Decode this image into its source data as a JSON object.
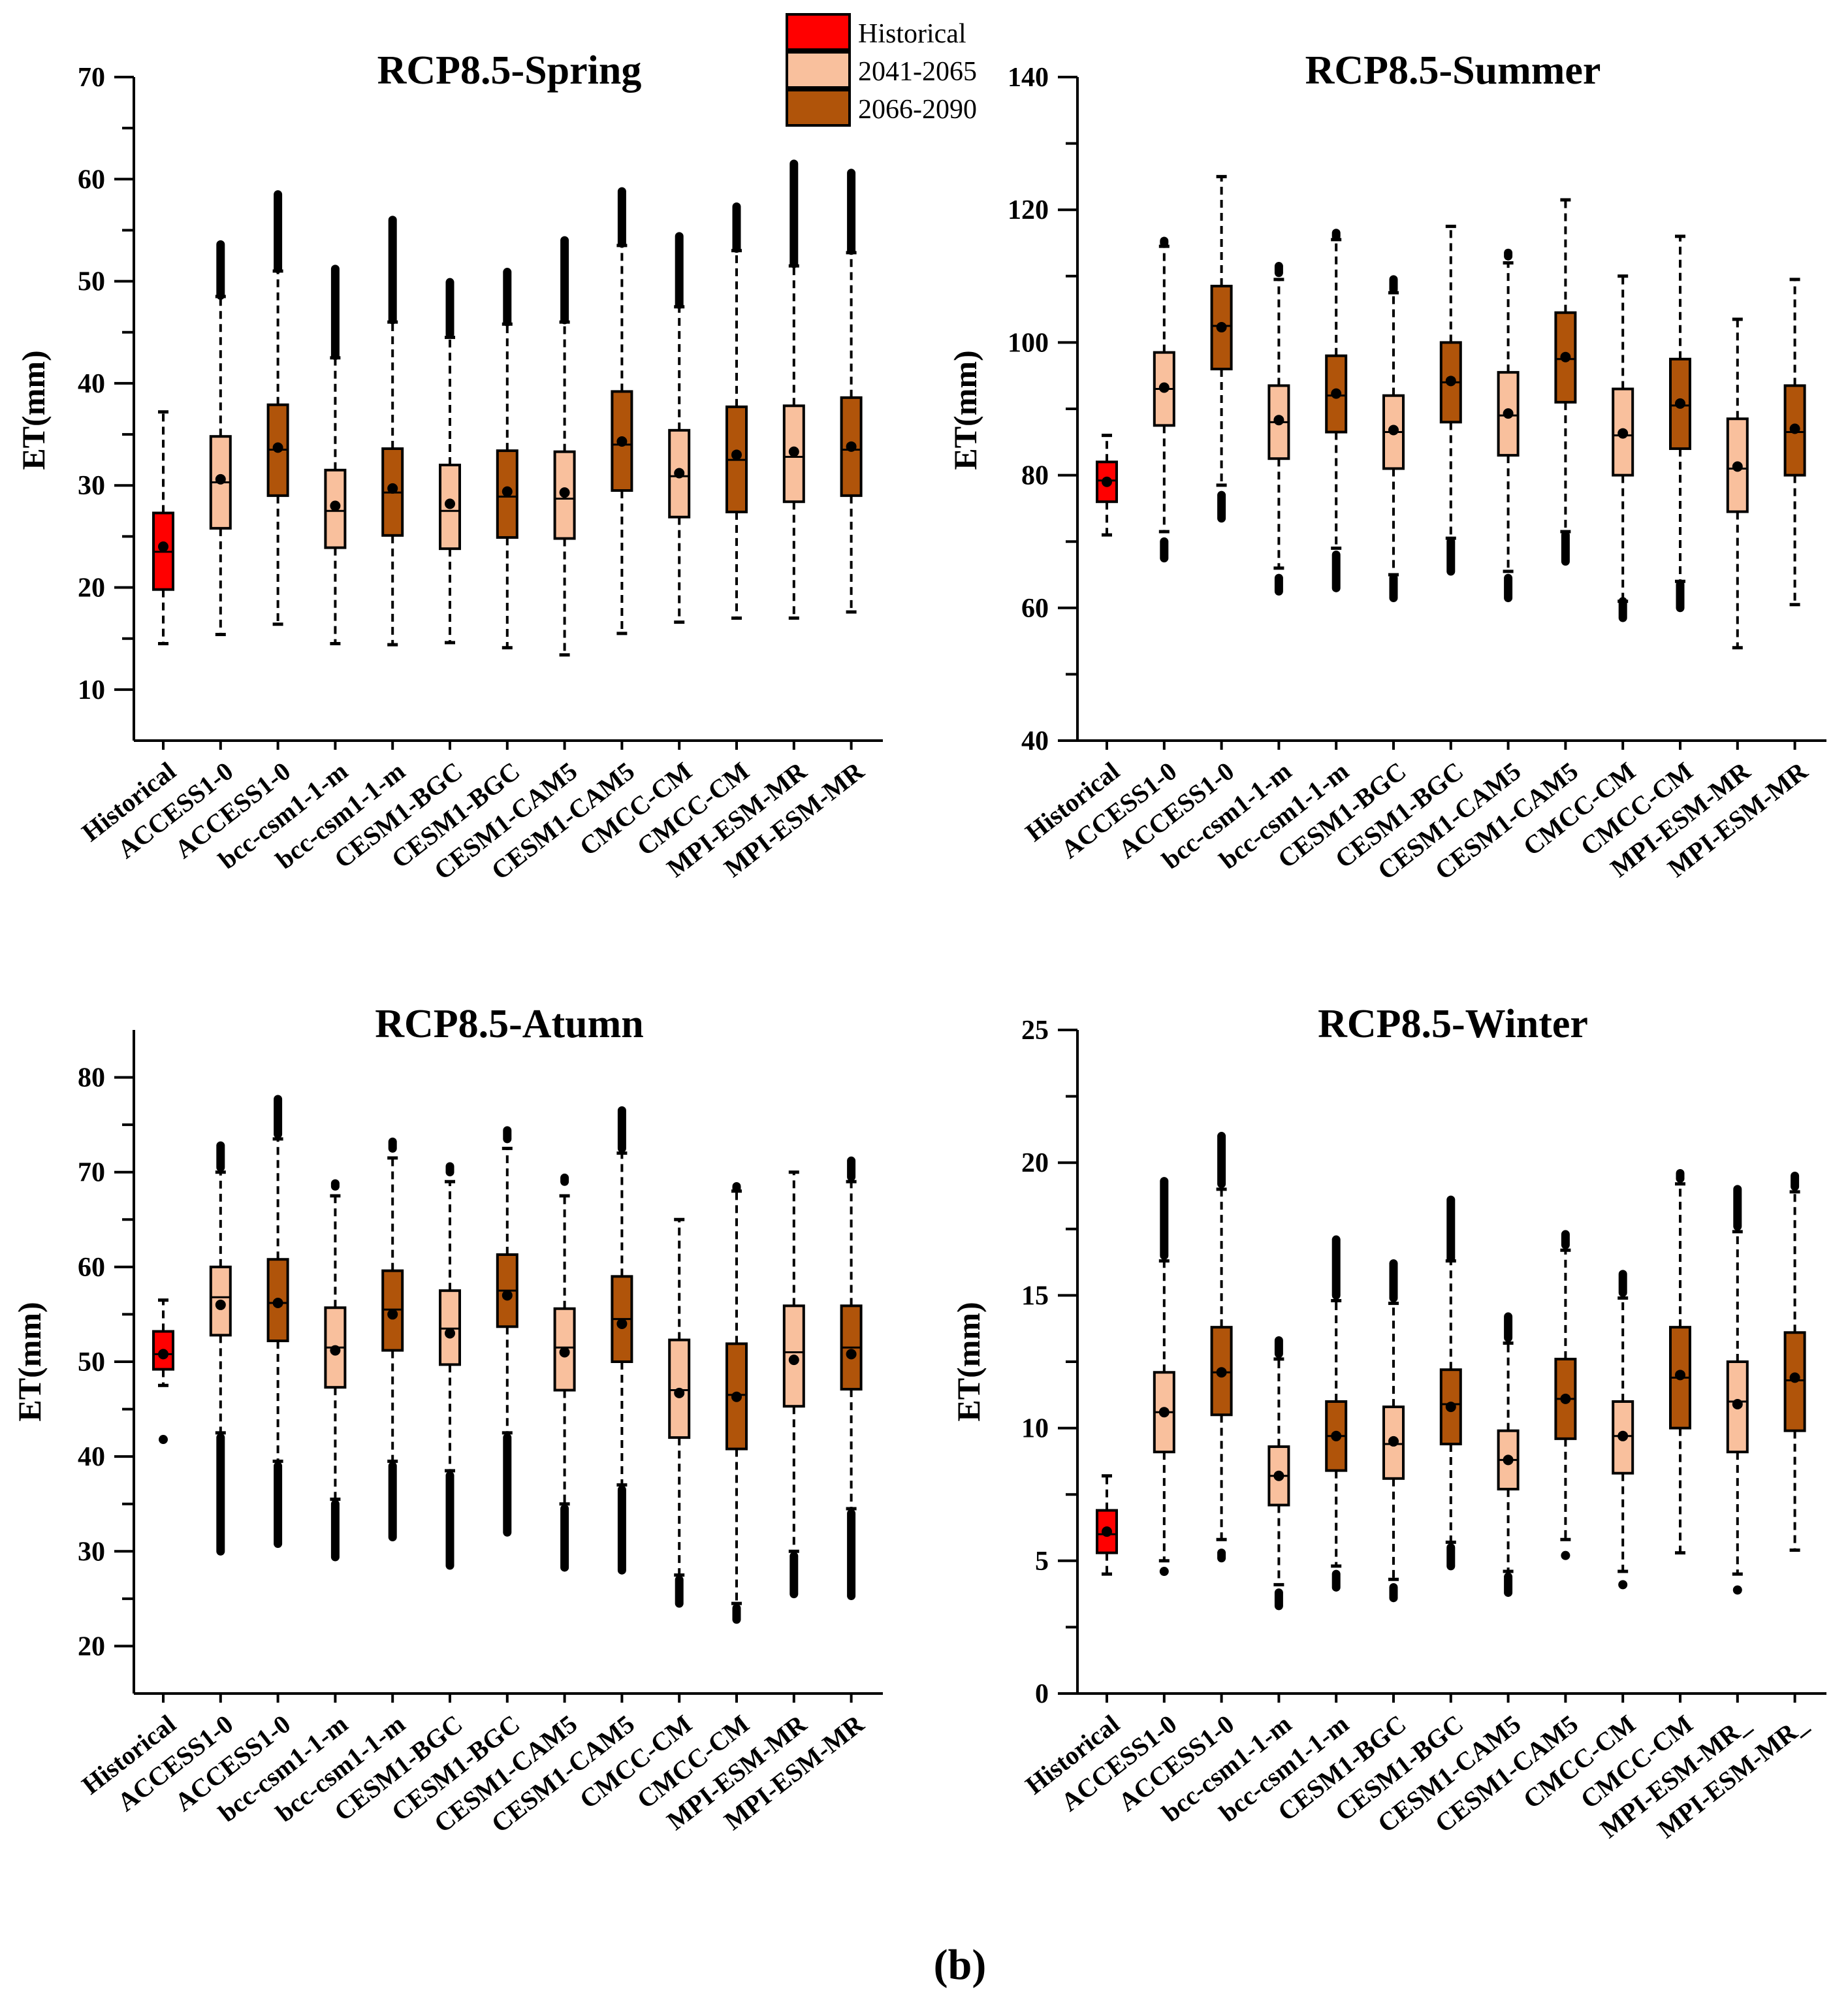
{
  "legend": {
    "items": [
      {
        "label": "Historical",
        "color": "#ff0000"
      },
      {
        "label": "2041-2065",
        "color": "#f9c09d"
      },
      {
        "label": "2066-2090",
        "color": "#b0540a"
      }
    ]
  },
  "caption": "(b)",
  "chart_data": [
    {
      "type": "boxplot",
      "title": "RCP8.5-Spring",
      "ylabel": "ET(mm)",
      "ylim": [
        5,
        70
      ],
      "yticks": [
        10,
        20,
        30,
        40,
        50,
        60,
        70
      ],
      "categories": [
        "Historical",
        "ACCESS1-0",
        "ACCESS1-0",
        "bcc-csm1-1-m",
        "bcc-csm1-1-m",
        "CESM1-BGC",
        "CESM1-BGC",
        "CESM1-CAM5",
        "CESM1-CAM5",
        "CMCC-CM",
        "CMCC-CM",
        "MPI-ESM-MR",
        "MPI-ESM-MR"
      ],
      "groups": [
        "Historical",
        "2041-2065",
        "2066-2090",
        "2041-2065",
        "2066-2090",
        "2041-2065",
        "2066-2090",
        "2041-2065",
        "2066-2090",
        "2041-2065",
        "2066-2090",
        "2041-2065",
        "2066-2090"
      ],
      "boxes": [
        {
          "min": 14.5,
          "q1": 19.8,
          "median": 23.5,
          "q3": 27.3,
          "max": 37.2,
          "mean": 24.0,
          "outliers": []
        },
        {
          "min": 15.4,
          "q1": 25.8,
          "median": 30.3,
          "q3": 34.8,
          "max": 48.5,
          "mean": 30.6,
          "outliers": [
            {
              "from": 48.6,
              "to": 53.6
            }
          ]
        },
        {
          "min": 16.4,
          "q1": 29.0,
          "median": 33.5,
          "q3": 37.9,
          "max": 51.0,
          "mean": 33.7,
          "outliers": [
            {
              "from": 51.2,
              "to": 58.5
            }
          ]
        },
        {
          "min": 14.5,
          "q1": 23.9,
          "median": 27.5,
          "q3": 31.5,
          "max": 42.5,
          "mean": 28.0,
          "outliers": [
            {
              "from": 42.7,
              "to": 51.2
            }
          ]
        },
        {
          "min": 14.4,
          "q1": 25.1,
          "median": 29.3,
          "q3": 33.6,
          "max": 46.0,
          "mean": 29.7,
          "outliers": [
            {
              "from": 46.2,
              "to": 56.0
            }
          ]
        },
        {
          "min": 14.6,
          "q1": 23.8,
          "median": 27.5,
          "q3": 32.0,
          "max": 44.5,
          "mean": 28.2,
          "outliers": [
            {
              "from": 44.8,
              "to": 49.9
            }
          ]
        },
        {
          "min": 14.1,
          "q1": 24.9,
          "median": 28.9,
          "q3": 33.4,
          "max": 45.8,
          "mean": 29.4,
          "outliers": [
            {
              "from": 46.0,
              "to": 50.9
            }
          ]
        },
        {
          "min": 13.4,
          "q1": 24.8,
          "median": 28.7,
          "q3": 33.3,
          "max": 46.0,
          "mean": 29.3,
          "outliers": [
            {
              "from": 46.2,
              "to": 54.0
            }
          ]
        },
        {
          "min": 15.5,
          "q1": 29.5,
          "median": 34.0,
          "q3": 39.2,
          "max": 53.5,
          "mean": 34.3,
          "outliers": [
            {
              "from": 53.7,
              "to": 58.8
            }
          ]
        },
        {
          "min": 16.6,
          "q1": 26.9,
          "median": 30.9,
          "q3": 35.4,
          "max": 47.5,
          "mean": 31.2,
          "outliers": [
            {
              "from": 47.7,
              "to": 54.4
            }
          ]
        },
        {
          "min": 17.0,
          "q1": 27.4,
          "median": 32.5,
          "q3": 37.7,
          "max": 53.0,
          "mean": 33.0,
          "outliers": [
            {
              "from": 53.2,
              "to": 57.3
            }
          ]
        },
        {
          "min": 17.0,
          "q1": 28.4,
          "median": 32.8,
          "q3": 37.8,
          "max": 51.5,
          "mean": 33.3,
          "outliers": [
            {
              "from": 51.7,
              "to": 61.5
            }
          ]
        },
        {
          "min": 17.6,
          "q1": 29.0,
          "median": 33.5,
          "q3": 38.6,
          "max": 52.8,
          "mean": 33.8,
          "outliers": [
            {
              "from": 53.0,
              "to": 60.6
            }
          ]
        }
      ]
    },
    {
      "type": "boxplot",
      "title": "RCP8.5-Summer",
      "ylabel": "ET(mm)",
      "ylim": [
        40,
        140
      ],
      "yticks": [
        40,
        60,
        80,
        100,
        120,
        140
      ],
      "categories": [
        "Historical",
        "ACCESS1-0",
        "ACCESS1-0",
        "bcc-csm1-1-m",
        "bcc-csm1-1-m",
        "CESM1-BGC",
        "CESM1-BGC",
        "CESM1-CAM5",
        "CESM1-CAM5",
        "CMCC-CM",
        "CMCC-CM",
        "MPI-ESM-MR",
        "MPI-ESM-MR"
      ],
      "groups": [
        "Historical",
        "2041-2065",
        "2066-2090",
        "2041-2065",
        "2066-2090",
        "2041-2065",
        "2066-2090",
        "2041-2065",
        "2066-2090",
        "2041-2065",
        "2066-2090",
        "2041-2065",
        "2066-2090"
      ],
      "boxes": [
        {
          "min": 71.0,
          "q1": 76.0,
          "median": 79.2,
          "q3": 82.0,
          "max": 86.0,
          "mean": 79.0,
          "outliers": []
        },
        {
          "min": 71.5,
          "q1": 87.5,
          "median": 93.0,
          "q3": 98.5,
          "max": 114.5,
          "mean": 93.2,
          "outliers": [
            {
              "from": 67.5,
              "to": 70.0
            },
            {
              "from": 115.0,
              "to": 115.3
            }
          ]
        },
        {
          "min": 78.5,
          "q1": 96.0,
          "median": 102.5,
          "q3": 108.5,
          "max": 125.0,
          "mean": 102.3,
          "outliers": [
            {
              "from": 73.5,
              "to": 77.0
            }
          ]
        },
        {
          "min": 66.0,
          "q1": 82.5,
          "median": 88.0,
          "q3": 93.5,
          "max": 109.5,
          "mean": 88.3,
          "outliers": [
            {
              "from": 62.5,
              "to": 64.5
            },
            {
              "from": 110.5,
              "to": 111.5
            }
          ]
        },
        {
          "min": 69.0,
          "q1": 86.5,
          "median": 92.0,
          "q3": 98.0,
          "max": 115.5,
          "mean": 92.3,
          "outliers": [
            {
              "from": 63.0,
              "to": 68.0
            },
            {
              "from": 116.0,
              "to": 116.5
            }
          ]
        },
        {
          "min": 65.0,
          "q1": 81.0,
          "median": 86.5,
          "q3": 92.0,
          "max": 107.5,
          "mean": 86.8,
          "outliers": [
            {
              "from": 61.5,
              "to": 64.5
            },
            {
              "from": 108.0,
              "to": 109.5
            }
          ]
        },
        {
          "min": 70.5,
          "q1": 88.0,
          "median": 94.0,
          "q3": 100.0,
          "max": 117.5,
          "mean": 94.2,
          "outliers": [
            {
              "from": 65.5,
              "to": 70.0
            }
          ]
        },
        {
          "min": 65.5,
          "q1": 83.0,
          "median": 89.0,
          "q3": 95.5,
          "max": 112.0,
          "mean": 89.3,
          "outliers": [
            {
              "from": 61.5,
              "to": 64.5
            },
            {
              "from": 113.0,
              "to": 113.5
            }
          ]
        },
        {
          "min": 71.5,
          "q1": 91.0,
          "median": 97.5,
          "q3": 104.5,
          "max": 121.5,
          "mean": 97.8,
          "outliers": [
            {
              "from": 67.0,
              "to": 71.0
            }
          ]
        },
        {
          "min": 61.0,
          "q1": 80.0,
          "median": 86.0,
          "q3": 93.0,
          "max": 110.0,
          "mean": 86.3,
          "outliers": [
            {
              "from": 58.5,
              "to": 61.0
            }
          ]
        },
        {
          "min": 64.0,
          "q1": 84.0,
          "median": 90.5,
          "q3": 97.5,
          "max": 116.0,
          "mean": 90.8,
          "outliers": [
            {
              "from": 60.0,
              "to": 63.5
            }
          ]
        },
        {
          "min": 54.0,
          "q1": 74.5,
          "median": 81.0,
          "q3": 88.5,
          "max": 103.5,
          "mean": 81.3,
          "outliers": []
        },
        {
          "min": 60.5,
          "q1": 80.0,
          "median": 86.5,
          "q3": 93.5,
          "max": 109.5,
          "mean": 87.0,
          "outliers": []
        }
      ]
    },
    {
      "type": "boxplot",
      "title": "RCP8.5-Atumn",
      "ylabel": "ET(mm)",
      "ylim": [
        15,
        85
      ],
      "yticks": [
        20,
        30,
        40,
        50,
        60,
        70,
        80
      ],
      "categories": [
        "Historical",
        "ACCESS1-0",
        "ACCESS1-0",
        "bcc-csm1-1-m",
        "bcc-csm1-1-m",
        "CESM1-BGC",
        "CESM1-BGC",
        "CESM1-CAM5",
        "CESM1-CAM5",
        "CMCC-CM",
        "CMCC-CM",
        "MPI-ESM-MR",
        "MPI-ESM-MR"
      ],
      "groups": [
        "Historical",
        "2041-2065",
        "2066-2090",
        "2041-2065",
        "2066-2090",
        "2041-2065",
        "2066-2090",
        "2041-2065",
        "2066-2090",
        "2041-2065",
        "2066-2090",
        "2041-2065",
        "2066-2090"
      ],
      "boxes": [
        {
          "min": 47.5,
          "q1": 49.2,
          "median": 50.8,
          "q3": 53.2,
          "max": 56.5,
          "mean": 50.8,
          "outliers": [
            {
              "from": 41.8,
              "to": 41.8
            }
          ]
        },
        {
          "min": 42.5,
          "q1": 52.8,
          "median": 56.8,
          "q3": 60.0,
          "max": 70.0,
          "mean": 56.0,
          "outliers": [
            {
              "from": 30.0,
              "to": 42.0
            },
            {
              "from": 70.5,
              "to": 72.8
            }
          ]
        },
        {
          "min": 39.5,
          "q1": 52.2,
          "median": 56.2,
          "q3": 60.8,
          "max": 73.5,
          "mean": 56.2,
          "outliers": [
            {
              "from": 30.8,
              "to": 39.0
            },
            {
              "from": 74.0,
              "to": 77.7
            }
          ]
        },
        {
          "min": 35.5,
          "q1": 47.3,
          "median": 51.5,
          "q3": 55.7,
          "max": 67.5,
          "mean": 51.2,
          "outliers": [
            {
              "from": 29.4,
              "to": 35.0
            },
            {
              "from": 68.5,
              "to": 68.8
            }
          ]
        },
        {
          "min": 39.5,
          "q1": 51.2,
          "median": 55.5,
          "q3": 59.6,
          "max": 71.5,
          "mean": 55.0,
          "outliers": [
            {
              "from": 31.5,
              "to": 39.0
            },
            {
              "from": 72.5,
              "to": 73.2
            }
          ]
        },
        {
          "min": 38.5,
          "q1": 49.7,
          "median": 53.5,
          "q3": 57.5,
          "max": 69.0,
          "mean": 53.0,
          "outliers": [
            {
              "from": 28.5,
              "to": 38.0
            },
            {
              "from": 70.0,
              "to": 70.6
            }
          ]
        },
        {
          "min": 42.5,
          "q1": 53.7,
          "median": 57.5,
          "q3": 61.3,
          "max": 72.5,
          "mean": 57.0,
          "outliers": [
            {
              "from": 32.0,
              "to": 42.0
            },
            {
              "from": 73.5,
              "to": 74.4
            }
          ]
        },
        {
          "min": 35.0,
          "q1": 47.0,
          "median": 51.5,
          "q3": 55.6,
          "max": 67.5,
          "mean": 51.0,
          "outliers": [
            {
              "from": 28.3,
              "to": 34.5
            },
            {
              "from": 69.0,
              "to": 69.4
            }
          ]
        },
        {
          "min": 37.0,
          "q1": 50.0,
          "median": 54.5,
          "q3": 59.0,
          "max": 72.0,
          "mean": 54.0,
          "outliers": [
            {
              "from": 28.0,
              "to": 36.5
            },
            {
              "from": 72.5,
              "to": 76.5
            }
          ]
        },
        {
          "min": 27.5,
          "q1": 42.0,
          "median": 47.0,
          "q3": 52.3,
          "max": 65.0,
          "mean": 46.7,
          "outliers": [
            {
              "from": 24.5,
              "to": 27.0
            }
          ]
        },
        {
          "min": 24.5,
          "q1": 40.8,
          "median": 46.5,
          "q3": 51.9,
          "max": 68.0,
          "mean": 46.3,
          "outliers": [
            {
              "from": 22.8,
              "to": 24.0
            },
            {
              "from": 68.3,
              "to": 68.5
            }
          ]
        },
        {
          "min": 30.0,
          "q1": 45.3,
          "median": 51.0,
          "q3": 55.9,
          "max": 70.0,
          "mean": 50.2,
          "outliers": [
            {
              "from": 25.5,
              "to": 29.5
            }
          ]
        },
        {
          "min": 34.5,
          "q1": 47.1,
          "median": 51.5,
          "q3": 55.9,
          "max": 69.0,
          "mean": 50.8,
          "outliers": [
            {
              "from": 25.3,
              "to": 34.0
            },
            {
              "from": 69.5,
              "to": 71.2
            }
          ]
        }
      ]
    },
    {
      "type": "boxplot",
      "title": "RCP8.5-Winter",
      "ylabel": "ET(mm)",
      "ylim": [
        0,
        25
      ],
      "yticks": [
        0,
        5,
        10,
        15,
        20,
        25
      ],
      "categories": [
        "Historical",
        "ACCESS1-0",
        "ACCESS1-0",
        "bcc-csm1-1-m",
        "bcc-csm1-1-m",
        "CESM1-BGC",
        "CESM1-BGC",
        "CESM1-CAM5",
        "CESM1-CAM5",
        "CMCC-CM",
        "CMCC-CM",
        "MPI-ESM-MR_",
        "MPI-ESM-MR_"
      ],
      "groups": [
        "Historical",
        "2041-2065",
        "2066-2090",
        "2041-2065",
        "2066-2090",
        "2041-2065",
        "2066-2090",
        "2041-2065",
        "2066-2090",
        "2041-2065",
        "2066-2090",
        "2041-2065",
        "2066-2090"
      ],
      "boxes": [
        {
          "min": 4.5,
          "q1": 5.3,
          "median": 6.0,
          "q3": 6.9,
          "max": 8.2,
          "mean": 6.1,
          "outliers": []
        },
        {
          "min": 5.0,
          "q1": 9.1,
          "median": 10.6,
          "q3": 12.1,
          "max": 16.3,
          "mean": 10.6,
          "outliers": [
            {
              "from": 4.6,
              "to": 4.6
            },
            {
              "from": 16.5,
              "to": 19.3
            }
          ]
        },
        {
          "min": 5.8,
          "q1": 10.5,
          "median": 12.1,
          "q3": 13.8,
          "max": 19.0,
          "mean": 12.1,
          "outliers": [
            {
              "from": 5.1,
              "to": 5.3
            },
            {
              "from": 19.2,
              "to": 21.0
            }
          ]
        },
        {
          "min": 4.1,
          "q1": 7.1,
          "median": 8.2,
          "q3": 9.3,
          "max": 12.6,
          "mean": 8.2,
          "outliers": [
            {
              "from": 3.3,
              "to": 3.8
            },
            {
              "from": 12.8,
              "to": 13.3
            }
          ]
        },
        {
          "min": 4.8,
          "q1": 8.4,
          "median": 9.7,
          "q3": 11.0,
          "max": 14.8,
          "mean": 9.7,
          "outliers": [
            {
              "from": 4.0,
              "to": 4.5
            },
            {
              "from": 15.0,
              "to": 17.1
            }
          ]
        },
        {
          "min": 4.3,
          "q1": 8.1,
          "median": 9.4,
          "q3": 10.8,
          "max": 14.7,
          "mean": 9.5,
          "outliers": [
            {
              "from": 3.6,
              "to": 4.0
            },
            {
              "from": 14.9,
              "to": 16.2
            }
          ]
        },
        {
          "min": 5.7,
          "q1": 9.4,
          "median": 10.9,
          "q3": 12.2,
          "max": 16.3,
          "mean": 10.8,
          "outliers": [
            {
              "from": 4.8,
              "to": 5.5
            },
            {
              "from": 16.4,
              "to": 18.6
            }
          ]
        },
        {
          "min": 4.6,
          "q1": 7.7,
          "median": 8.8,
          "q3": 9.9,
          "max": 13.2,
          "mean": 8.8,
          "outliers": [
            {
              "from": 3.8,
              "to": 4.4
            },
            {
              "from": 13.4,
              "to": 14.2
            }
          ]
        },
        {
          "min": 5.8,
          "q1": 9.6,
          "median": 11.1,
          "q3": 12.6,
          "max": 16.7,
          "mean": 11.1,
          "outliers": [
            {
              "from": 5.2,
              "to": 5.2
            },
            {
              "from": 16.9,
              "to": 17.3
            }
          ]
        },
        {
          "min": 4.6,
          "q1": 8.3,
          "median": 9.7,
          "q3": 11.0,
          "max": 14.9,
          "mean": 9.7,
          "outliers": [
            {
              "from": 4.1,
              "to": 4.1
            },
            {
              "from": 15.1,
              "to": 15.8
            }
          ]
        },
        {
          "min": 5.3,
          "q1": 10.0,
          "median": 11.9,
          "q3": 13.8,
          "max": 19.2,
          "mean": 12.0,
          "outliers": [
            {
              "from": 19.4,
              "to": 19.6
            }
          ]
        },
        {
          "min": 4.5,
          "q1": 9.1,
          "median": 11.0,
          "q3": 12.5,
          "max": 17.4,
          "mean": 10.9,
          "outliers": [
            {
              "from": 3.9,
              "to": 3.9
            },
            {
              "from": 17.6,
              "to": 19.0
            }
          ]
        },
        {
          "min": 5.4,
          "q1": 9.9,
          "median": 11.8,
          "q3": 13.6,
          "max": 18.9,
          "mean": 11.9,
          "outliers": [
            {
              "from": 19.1,
              "to": 19.5
            }
          ]
        }
      ]
    }
  ]
}
